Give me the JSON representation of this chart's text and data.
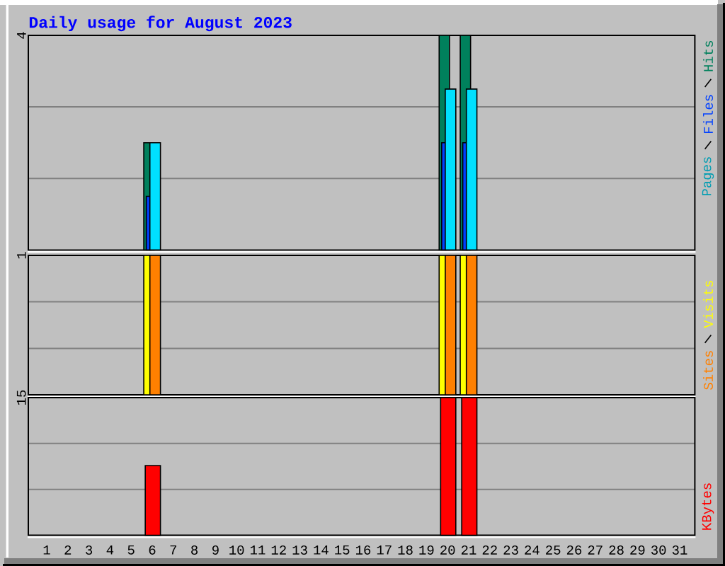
{
  "chart_data": [
    {
      "type": "bar",
      "title": "Daily usage for August 2023",
      "categories": [
        "1",
        "2",
        "3",
        "4",
        "5",
        "6",
        "7",
        "8",
        "9",
        "10",
        "11",
        "12",
        "13",
        "14",
        "15",
        "16",
        "17",
        "18",
        "19",
        "20",
        "21",
        "22",
        "23",
        "24",
        "25",
        "26",
        "27",
        "28",
        "29",
        "30",
        "31"
      ],
      "series": [
        {
          "name": "Hits",
          "color": "#00805c",
          "values": [
            null,
            null,
            null,
            null,
            null,
            2,
            null,
            null,
            null,
            null,
            null,
            null,
            null,
            null,
            null,
            null,
            null,
            null,
            null,
            4,
            4,
            null,
            null,
            null,
            null,
            null,
            null,
            null,
            null,
            null,
            null
          ]
        },
        {
          "name": "Files",
          "color": "#0040ff",
          "values": [
            null,
            null,
            null,
            null,
            null,
            1,
            null,
            null,
            null,
            null,
            null,
            null,
            null,
            null,
            null,
            null,
            null,
            null,
            null,
            2,
            2,
            null,
            null,
            null,
            null,
            null,
            null,
            null,
            null,
            null,
            null
          ]
        },
        {
          "name": "Pages",
          "color": "#00e0ff",
          "values": [
            null,
            null,
            null,
            null,
            null,
            2,
            null,
            null,
            null,
            null,
            null,
            null,
            null,
            null,
            null,
            null,
            null,
            null,
            null,
            3,
            3,
            null,
            null,
            null,
            null,
            null,
            null,
            null,
            null,
            null,
            null
          ]
        }
      ],
      "ylim": [
        0,
        4
      ],
      "yticks": [
        {
          "value": 1.333,
          "label": null
        },
        {
          "value": 2.667,
          "label": null
        },
        4
      ],
      "grid": "y",
      "legend": "top right",
      "tick_labels": "y"
    },
    {
      "type": "bar",
      "categories": [
        "1",
        "2",
        "3",
        "4",
        "5",
        "6",
        "7",
        "8",
        "9",
        "10",
        "11",
        "12",
        "13",
        "14",
        "15",
        "16",
        "17",
        "18",
        "19",
        "20",
        "21",
        "22",
        "23",
        "24",
        "25",
        "26",
        "27",
        "28",
        "29",
        "30",
        "31"
      ],
      "series": [
        {
          "name": "Visits",
          "color": "#ffff00",
          "values": [
            null,
            null,
            null,
            null,
            null,
            1,
            null,
            null,
            null,
            null,
            null,
            null,
            null,
            null,
            null,
            null,
            null,
            null,
            null,
            1,
            1,
            null,
            null,
            null,
            null,
            null,
            null,
            null,
            null,
            null,
            null
          ]
        },
        {
          "name": "Sites",
          "color": "#ff8000",
          "values": [
            null,
            null,
            null,
            null,
            null,
            1,
            null,
            null,
            null,
            null,
            null,
            null,
            null,
            null,
            null,
            null,
            null,
            null,
            null,
            1,
            1,
            null,
            null,
            null,
            null,
            null,
            null,
            null,
            null,
            null,
            null
          ]
        }
      ],
      "ylim": [
        0,
        1
      ],
      "yticks": [
        {
          "value": 0.333,
          "label": null
        },
        {
          "value": 0.667,
          "label": null
        },
        1
      ],
      "grid": "y",
      "legend": "bottom right",
      "tick_labels": "y"
    },
    {
      "type": "bar",
      "categories": [
        "1",
        "2",
        "3",
        "4",
        "5",
        "6",
        "7",
        "8",
        "9",
        "10",
        "11",
        "12",
        "13",
        "14",
        "15",
        "16",
        "17",
        "18",
        "19",
        "20",
        "21",
        "22",
        "23",
        "24",
        "25",
        "26",
        "27",
        "28",
        "29",
        "30",
        "31"
      ],
      "series": [
        {
          "name": "KBytes",
          "color": "#ff0000",
          "values": [
            null,
            null,
            null,
            null,
            null,
            7.6,
            null,
            null,
            null,
            null,
            null,
            null,
            null,
            null,
            null,
            null,
            null,
            null,
            null,
            15,
            15,
            null,
            null,
            null,
            null,
            null,
            null,
            null,
            null,
            null,
            null
          ]
        }
      ],
      "ylim": [
        0,
        15
      ],
      "yticks": [
        {
          "value": 5,
          "label": null
        },
        {
          "value": 10,
          "label": null
        },
        15
      ],
      "grid": "y",
      "legend": "bottom right"
    }
  ]
}
